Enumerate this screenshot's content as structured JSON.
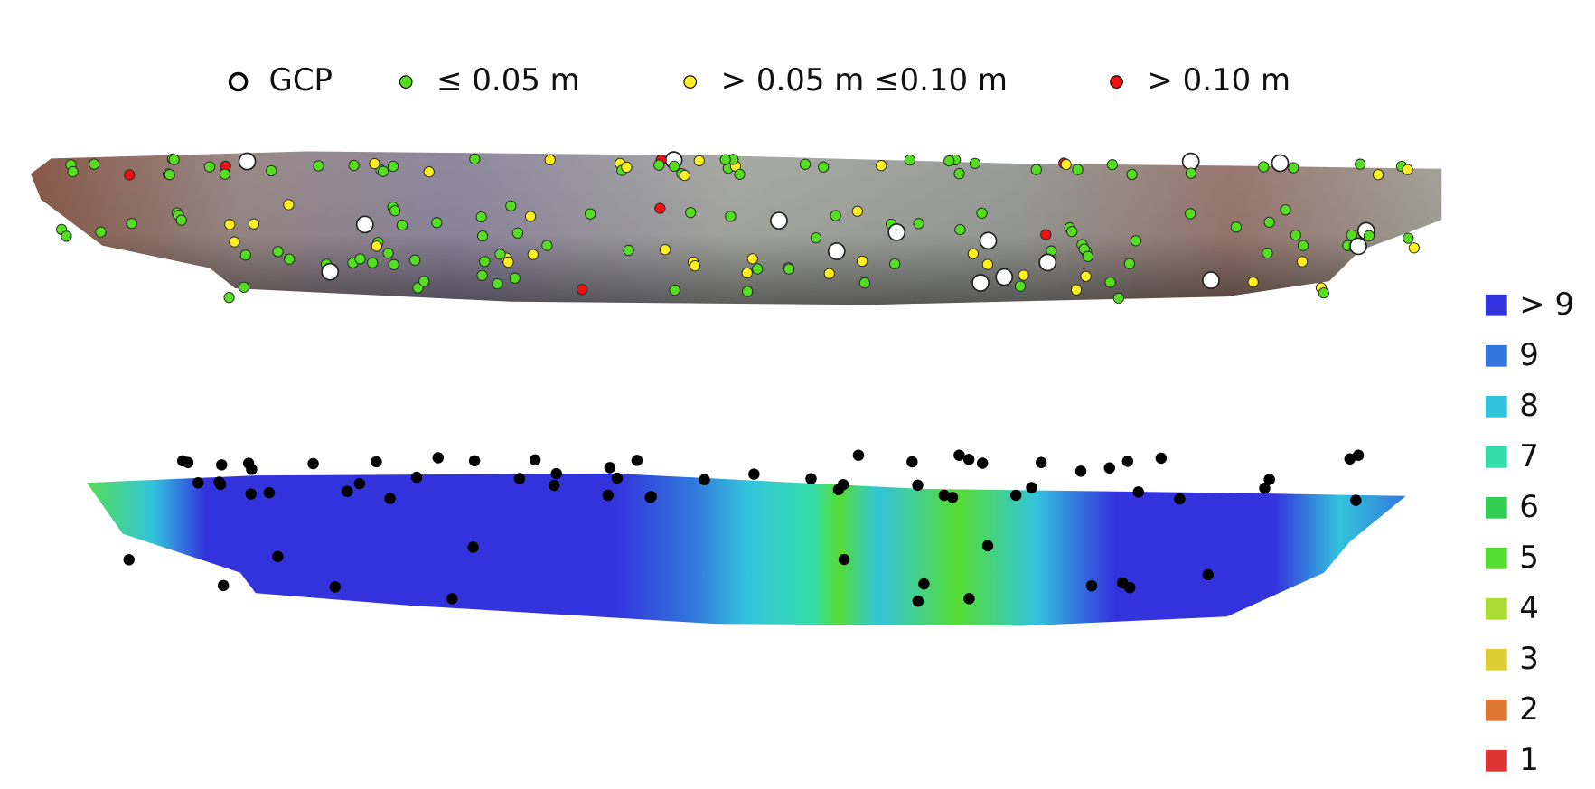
{
  "legend": {
    "items": [
      {
        "label": "GCP",
        "color": "#ffffff"
      },
      {
        "label": "≤ 0.05 m",
        "color": "#55dd22"
      },
      {
        "label": "> 0.05 m ≤0.10 m",
        "color": "#ffee22"
      },
      {
        "label": "> 0.10 m",
        "color": "#ee1111"
      }
    ]
  },
  "color_scale": {
    "items": [
      {
        "label": "> 9",
        "color": "#3333dd"
      },
      {
        "label": "9",
        "color": "#3377dd"
      },
      {
        "label": "8",
        "color": "#33c4dd"
      },
      {
        "label": "7",
        "color": "#33ddaa"
      },
      {
        "label": "6",
        "color": "#33cc55"
      },
      {
        "label": "5",
        "color": "#55dd33"
      },
      {
        "label": "4",
        "color": "#aadd33"
      },
      {
        "label": "3",
        "color": "#ddcc33"
      },
      {
        "label": "2",
        "color": "#dd7733"
      },
      {
        "label": "1",
        "color": "#dd3333"
      }
    ]
  }
}
